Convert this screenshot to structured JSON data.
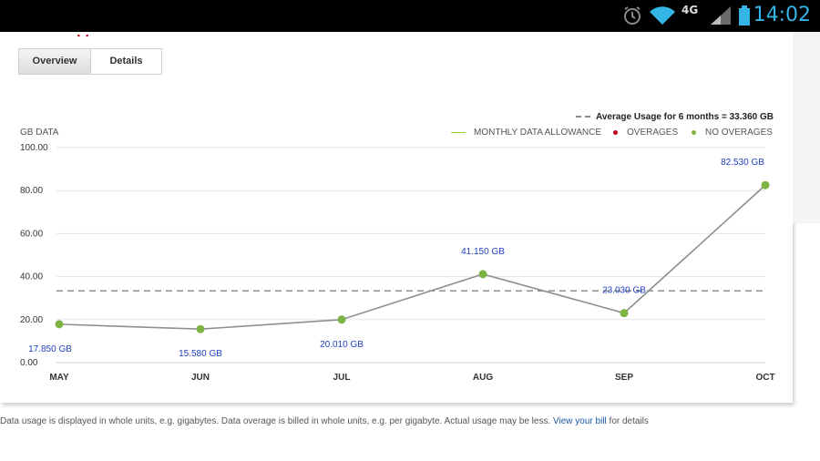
{
  "status_bar": {
    "time": "14:02",
    "network": "4G",
    "icons": [
      "alarm-icon",
      "wifi-icon",
      "signal-icon",
      "battery-icon"
    ]
  },
  "tabs": [
    {
      "label": "Overview",
      "active": true
    },
    {
      "label": "Details",
      "active": false
    }
  ],
  "average": {
    "label": "Average Usage for 6 months = 33.360 GB",
    "value": 33.36
  },
  "legend": {
    "allowance": "MONTHLY DATA ALLOWANCE",
    "overages": "OVERAGES",
    "no_overages": "NO OVERAGES"
  },
  "colors": {
    "allowance": "#9acd32",
    "overages": "#c0001a",
    "no_overages": "#7cb342",
    "value_label": "#2040c0",
    "line": "#8f8f8f",
    "link": "#1a5aa8"
  },
  "chart_data": {
    "type": "line",
    "ylabel": "GB DATA",
    "ylim": [
      0,
      100
    ],
    "yticks": [
      "0.00",
      "20.00",
      "40.00",
      "60.00",
      "80.00",
      "100.00"
    ],
    "categories": [
      "MAY",
      "JUN",
      "JUL",
      "AUG",
      "SEP",
      "OCT"
    ],
    "series": [
      {
        "values": [
          17.85,
          15.58,
          20.01,
          41.15,
          23.03,
          82.53
        ],
        "labels": [
          "17.850 GB",
          "15.580 GB",
          "20.010 GB",
          "41.150 GB",
          "23.030 GB",
          "82.530 GB"
        ]
      }
    ],
    "reference_line": 33.36,
    "grid": true,
    "legend_position": "top-right"
  },
  "footnote": {
    "text": "Data usage is displayed in whole units, e.g. gigabytes. Data overage is billed in whole units, e.g. per gigabyte. Actual usage may be less.",
    "link": "View your bill",
    "suffix": "for details"
  }
}
